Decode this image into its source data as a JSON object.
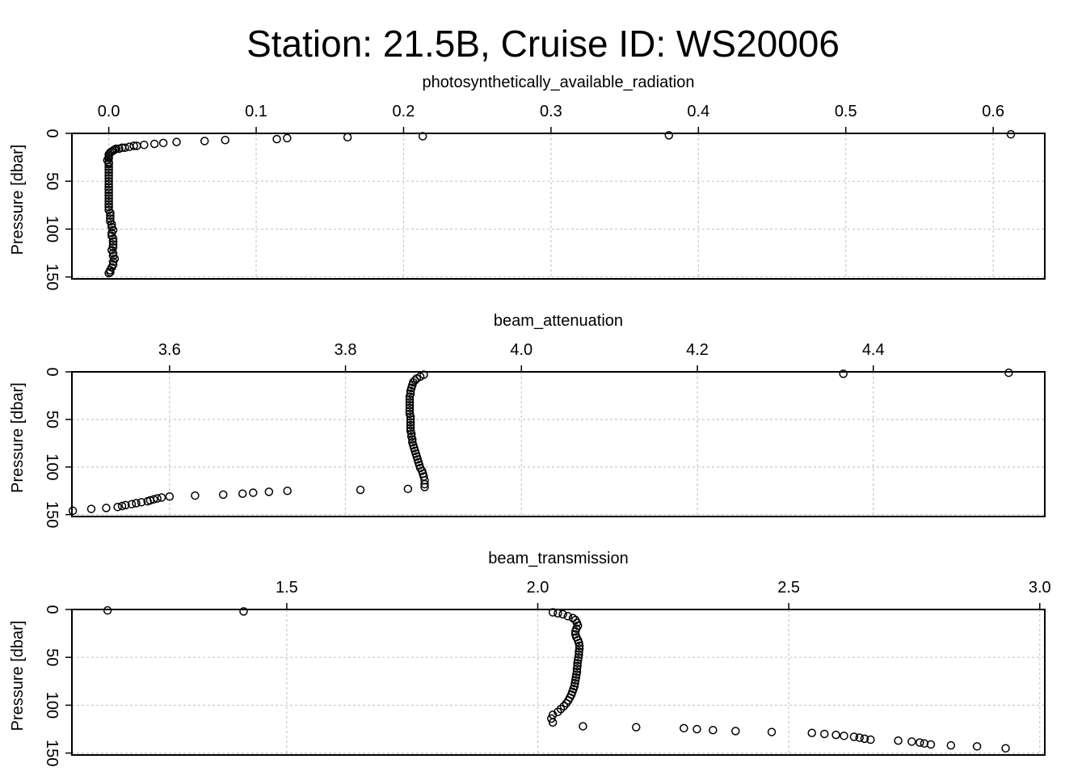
{
  "page": {
    "title": "Station: 21.5B, Cruise ID: WS20006"
  },
  "chart_data": [
    {
      "type": "scatter",
      "xlabel": "photosynthetically_available_radiation",
      "ylabel": "Pressure [dbar]",
      "xlim": [
        -0.025,
        0.635
      ],
      "ylim": [
        0,
        152
      ],
      "xticks": [
        {
          "value": 0.0,
          "label": "0.0"
        },
        {
          "value": 0.1,
          "label": "0.1"
        },
        {
          "value": 0.2,
          "label": "0.2"
        },
        {
          "value": 0.3,
          "label": "0.3"
        },
        {
          "value": 0.4,
          "label": "0.4"
        },
        {
          "value": 0.5,
          "label": "0.5"
        },
        {
          "value": 0.6,
          "label": "0.6"
        }
      ],
      "yticks": [
        {
          "value": 0,
          "label": "0"
        },
        {
          "value": 50,
          "label": "50"
        },
        {
          "value": 100,
          "label": "100"
        },
        {
          "value": 150,
          "label": "150"
        }
      ],
      "grid": true,
      "marker": "open-circle",
      "x": [
        0.612,
        0.38,
        0.213,
        0.162,
        0.121,
        0.114,
        0.079,
        0.065,
        0.046,
        0.037,
        0.031,
        0.024,
        0.019,
        0.017,
        0.014,
        0.011,
        0.009,
        0.007,
        0.005,
        0.004,
        0.003,
        0.002,
        0.001,
        0.0,
        0.0,
        0.0,
        -0.001,
        0.0,
        0.0,
        0.0,
        0.0,
        0.0,
        0.0,
        0.0,
        0.0,
        0.0,
        0.0,
        0.0,
        0.0,
        0.0,
        0.0,
        0.0,
        0.0,
        0.0,
        0.0,
        0.001,
        0.001,
        0.001,
        0.001,
        0.002,
        0.002,
        0.003,
        0.002,
        0.002,
        0.003,
        0.003,
        0.003,
        0.003,
        0.002,
        0.003,
        0.003,
        0.004,
        0.003,
        0.003,
        0.002,
        0.001,
        0.001,
        0.0
      ],
      "y": [
        1,
        2,
        3,
        4,
        5,
        6,
        7,
        8,
        9,
        10,
        11,
        12,
        13,
        13,
        14,
        15,
        15,
        16,
        16,
        17,
        18,
        19,
        20,
        22,
        24,
        26,
        28,
        30,
        32,
        35,
        38,
        41,
        44,
        47,
        50,
        53,
        56,
        59,
        62,
        65,
        68,
        71,
        74,
        77,
        80,
        83,
        86,
        89,
        92,
        95,
        98,
        101,
        104,
        107,
        110,
        113,
        116,
        119,
        122,
        125,
        128,
        131,
        134,
        137,
        140,
        143,
        145,
        146
      ]
    },
    {
      "type": "scatter",
      "xlabel": "beam_attenuation",
      "ylabel": "Pressure [dbar]",
      "xlim": [
        3.489,
        4.595
      ],
      "ylim": [
        0,
        152
      ],
      "xticks": [
        {
          "value": 3.6,
          "label": "3.6"
        },
        {
          "value": 3.8,
          "label": "3.8"
        },
        {
          "value": 4.0,
          "label": "4.0"
        },
        {
          "value": 4.2,
          "label": "4.2"
        },
        {
          "value": 4.4,
          "label": "4.4"
        }
      ],
      "yticks": [
        {
          "value": 0,
          "label": "0"
        },
        {
          "value": 50,
          "label": "50"
        },
        {
          "value": 100,
          "label": "100"
        },
        {
          "value": 150,
          "label": "150"
        }
      ],
      "grid": true,
      "marker": "open-circle",
      "x": [
        4.554,
        4.366,
        3.889,
        3.885,
        3.881,
        3.879,
        3.877,
        3.876,
        3.875,
        3.874,
        3.874,
        3.873,
        3.873,
        3.873,
        3.873,
        3.873,
        3.873,
        3.873,
        3.874,
        3.874,
        3.874,
        3.874,
        3.874,
        3.874,
        3.875,
        3.875,
        3.876,
        3.876,
        3.877,
        3.878,
        3.879,
        3.88,
        3.881,
        3.882,
        3.883,
        3.884,
        3.885,
        3.887,
        3.888,
        3.889,
        3.89,
        3.89,
        3.89,
        3.871,
        3.817,
        3.734,
        3.713,
        3.695,
        3.683,
        3.661,
        3.629,
        3.6,
        3.591,
        3.586,
        3.582,
        3.578,
        3.575,
        3.568,
        3.562,
        3.557,
        3.55,
        3.546,
        3.541,
        3.528,
        3.511,
        3.49
      ],
      "y": [
        1,
        2,
        3,
        5,
        7,
        9,
        11,
        14,
        17,
        20,
        23,
        26,
        29,
        32,
        35,
        38,
        41,
        44,
        47,
        50,
        53,
        56,
        59,
        62,
        65,
        68,
        71,
        74,
        77,
        80,
        83,
        86,
        89,
        92,
        95,
        98,
        101,
        104,
        107,
        110,
        114,
        118,
        121,
        123,
        124,
        125,
        126,
        127,
        128,
        129,
        130,
        131,
        132,
        133,
        134,
        135,
        136,
        137,
        138,
        139,
        140,
        141,
        142,
        143,
        144,
        146
      ]
    },
    {
      "type": "scatter",
      "xlabel": "beam_transmission",
      "ylabel": "Pressure [dbar]",
      "xlim": [
        1.072,
        3.01
      ],
      "ylim": [
        0,
        152
      ],
      "xticks": [
        {
          "value": 1.5,
          "label": "1.5"
        },
        {
          "value": 2.0,
          "label": "2.0"
        },
        {
          "value": 2.5,
          "label": "2.5"
        },
        {
          "value": 3.0,
          "label": "3.0"
        }
      ],
      "yticks": [
        {
          "value": 0,
          "label": "0"
        },
        {
          "value": 50,
          "label": "50"
        },
        {
          "value": 100,
          "label": "100"
        },
        {
          "value": 150,
          "label": "150"
        }
      ],
      "grid": true,
      "marker": "open-circle",
      "x": [
        1.143,
        1.414,
        2.03,
        2.04,
        2.05,
        2.06,
        2.07,
        2.075,
        2.078,
        2.08,
        2.077,
        2.075,
        2.075,
        2.077,
        2.08,
        2.082,
        2.083,
        2.083,
        2.082,
        2.082,
        2.081,
        2.08,
        2.079,
        2.079,
        2.078,
        2.078,
        2.077,
        2.076,
        2.075,
        2.074,
        2.073,
        2.071,
        2.069,
        2.067,
        2.064,
        2.061,
        2.057,
        2.052,
        2.046,
        2.04,
        2.03,
        2.027,
        2.03,
        2.09,
        2.196,
        2.291,
        2.317,
        2.349,
        2.394,
        2.466,
        2.546,
        2.571,
        2.594,
        2.61,
        2.63,
        2.641,
        2.651,
        2.663,
        2.718,
        2.745,
        2.761,
        2.77,
        2.783,
        2.823,
        2.875,
        2.932
      ],
      "y": [
        1,
        2,
        3,
        4,
        5,
        7,
        9,
        11,
        14,
        17,
        20,
        23,
        26,
        29,
        32,
        35,
        38,
        41,
        44,
        47,
        50,
        53,
        56,
        59,
        62,
        65,
        68,
        71,
        74,
        77,
        80,
        83,
        86,
        89,
        92,
        95,
        98,
        101,
        104,
        107,
        110,
        114,
        118,
        122,
        123,
        124,
        125,
        126,
        127,
        128,
        129,
        130,
        131,
        132,
        133,
        134,
        135,
        136,
        137,
        138,
        139,
        140,
        141,
        142,
        143,
        145
      ]
    }
  ]
}
